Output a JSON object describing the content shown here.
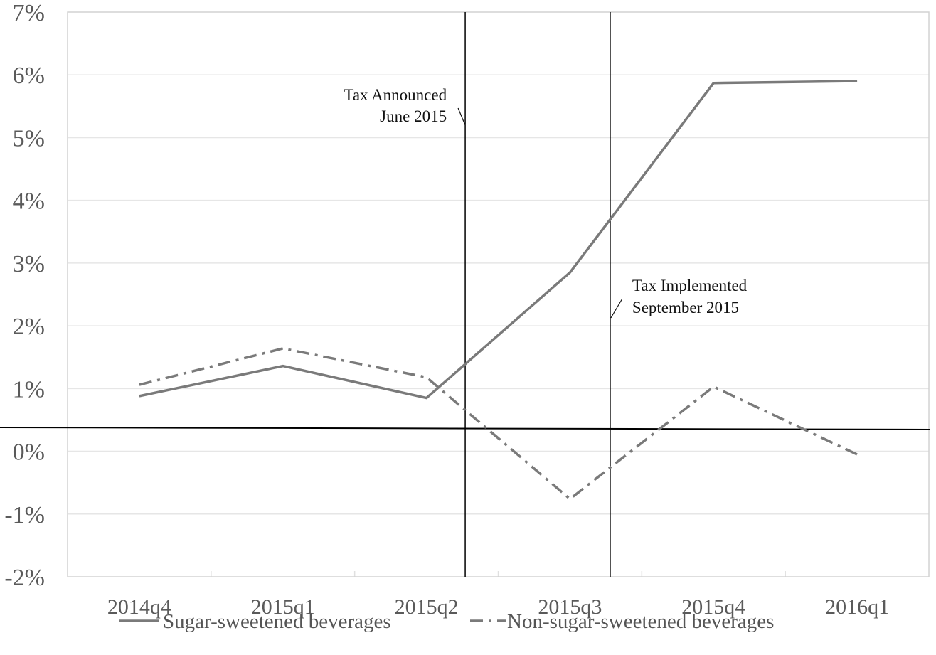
{
  "chart_data": {
    "type": "line",
    "title": "",
    "xlabel": "",
    "ylabel": "",
    "categories": [
      "2014q4",
      "2015q1",
      "2015q2",
      "2015q3",
      "2015q4",
      "2016q1"
    ],
    "ylim": [
      -2,
      7
    ],
    "yticks": [
      -2,
      -1,
      0,
      1,
      2,
      3,
      4,
      5,
      6,
      7
    ],
    "ytick_labels": [
      "-2%",
      "-1%",
      "0%",
      "1%",
      "2%",
      "3%",
      "4%",
      "5%",
      "6%",
      "7%"
    ],
    "grid": true,
    "legend_position": "bottom",
    "series": [
      {
        "name": "Sugar-sweetened beverages",
        "style": "solid",
        "color": "#7a7a7a",
        "values": [
          0.88,
          1.36,
          0.85,
          2.85,
          5.87,
          5.9
        ]
      },
      {
        "name": "Non-sugar-sweetened beverages",
        "style": "dash-dot",
        "color": "#7a7a7a",
        "values": [
          1.06,
          1.64,
          1.18,
          -0.76,
          1.03,
          -0.05
        ]
      }
    ],
    "annotations": [
      {
        "lines": [
          "Tax Announced",
          "June 2015"
        ],
        "x_between": [
          "2015q2",
          "2015q3"
        ],
        "x_fraction": 0.27
      },
      {
        "lines": [
          "Tax Implemented",
          "September 2015"
        ],
        "x_between": [
          "2015q3",
          "2015q4"
        ],
        "x_fraction": 0.28
      }
    ],
    "reference_line_color": "#000000"
  }
}
